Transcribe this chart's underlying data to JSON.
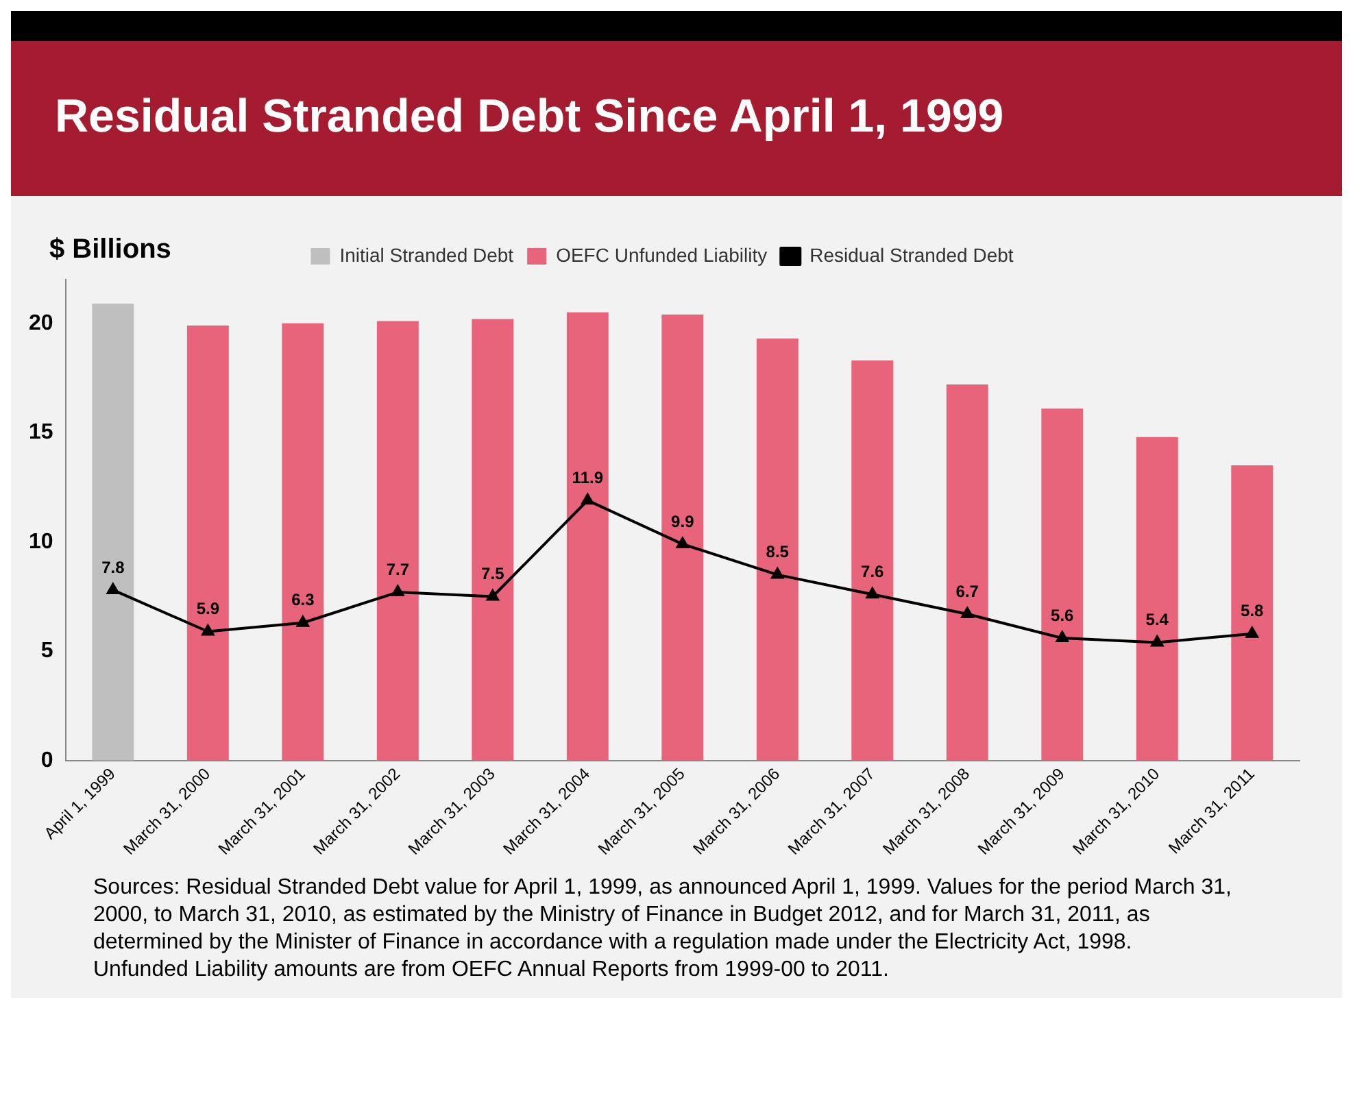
{
  "chart_data": {
    "type": "bar",
    "title": "Residual Stranded Debt Since April 1, 1999",
    "ylabel": "$ Billions",
    "categories": [
      "April 1, 1999",
      "March 31, 2000",
      "March 31, 2001",
      "March 31, 2002",
      "March 31, 2003",
      "March 31, 2004",
      "March 31, 2005",
      "March 31, 2006",
      "March 31, 2007",
      "March 31, 2008",
      "March 31, 2009",
      "March 31, 2010",
      "March 31, 2011"
    ],
    "series": [
      {
        "name": "Initial Stranded Debt",
        "color": "#bfbfbf",
        "values": [
          20.9,
          null,
          null,
          null,
          null,
          null,
          null,
          null,
          null,
          null,
          null,
          null,
          null
        ]
      },
      {
        "name": "OEFC Unfunded Liability",
        "color": "#e8647a",
        "values": [
          null,
          19.9,
          20.0,
          20.1,
          20.2,
          20.5,
          20.4,
          19.3,
          18.3,
          17.2,
          16.1,
          14.8,
          13.5
        ]
      },
      {
        "name": "Residual Stranded Debt",
        "type": "line",
        "color": "#000000",
        "marker": "triangle",
        "values": [
          7.8,
          5.9,
          6.3,
          7.7,
          7.5,
          11.9,
          9.9,
          8.5,
          7.6,
          6.7,
          5.6,
          5.4,
          5.8
        ],
        "value_labels": [
          "7.8",
          "5.9",
          "6.3",
          "7.7",
          "7.5",
          "11.9",
          "9.9",
          "8.5",
          "7.6",
          "6.7",
          "5.6",
          "5.4",
          "5.8"
        ]
      }
    ],
    "ylim": [
      0,
      22
    ],
    "yticks": [
      0,
      5,
      10,
      15,
      20
    ],
    "grid": false,
    "legend": "top",
    "annotations": [
      "Sources: Residual Stranded Debt value  for April 1, 1999, as announced April 1, 1999.  Values for the period March  31, 2000, to March  31, 2010, as estimated by the Ministry  of Finance in Budget 2012, and for March 31, 2011, as determined by the Minister of Finance in accordance with a regulation made under the Electricity Act, 1998.",
      "Unfunded Liability amounts are from OEFC Annual Reports from 1999-00 to 2011."
    ]
  }
}
